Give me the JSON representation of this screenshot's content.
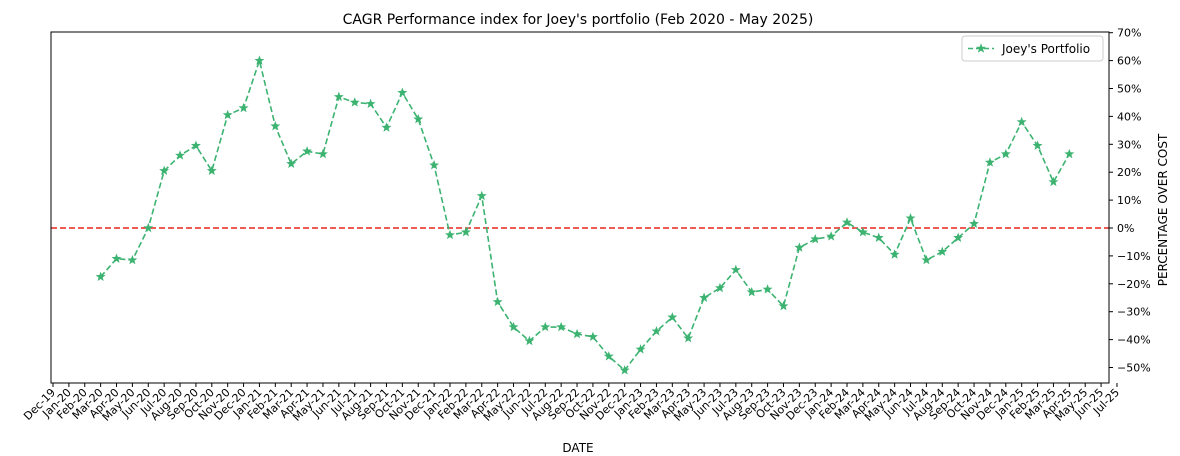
{
  "chart_data": {
    "type": "line",
    "title": "CAGR Performance index for Joey's portfolio (Feb 2020 - May 2025)",
    "xlabel": "DATE",
    "ylabel": "PERCENTAGE OVER COST",
    "x_tick_labels": [
      "Dec-19",
      "Jan-20",
      "Feb-20",
      "Mar-20",
      "Apr-20",
      "May-20",
      "Jun-20",
      "Jul-20",
      "Aug-20",
      "Sep-20",
      "Oct-20",
      "Nov-20",
      "Dec-20",
      "Jan-21",
      "Feb-21",
      "Mar-21",
      "Apr-21",
      "May-21",
      "Jun-21",
      "Jul-21",
      "Aug-21",
      "Sep-21",
      "Oct-21",
      "Nov-21",
      "Dec-21",
      "Jan-22",
      "Feb-22",
      "Mar-22",
      "Apr-22",
      "May-22",
      "Jun-22",
      "Jul-22",
      "Aug-22",
      "Sep-22",
      "Oct-22",
      "Nov-22",
      "Dec-22",
      "Jan-23",
      "Feb-23",
      "Mar-23",
      "Apr-23",
      "May-23",
      "Jun-23",
      "Jul-23",
      "Aug-23",
      "Sep-23",
      "Oct-23",
      "Nov-23",
      "Dec-23",
      "Jan-24",
      "Feb-24",
      "Mar-24",
      "Apr-24",
      "May-24",
      "Jun-24",
      "Jul-24",
      "Aug-24",
      "Sep-24",
      "Oct-24",
      "Nov-24",
      "Dec-24",
      "Jan-25",
      "Feb-25",
      "Mar-25",
      "Apr-25",
      "May-25",
      "Jun-25",
      "Jul-25"
    ],
    "y_ticks": [
      -50,
      -40,
      -30,
      -20,
      -10,
      0,
      10,
      20,
      30,
      40,
      50,
      60,
      70
    ],
    "y_tick_labels": [
      "−50%",
      "−40%",
      "−30%",
      "−20%",
      "−10%",
      "0%",
      "10%",
      "20%",
      "30%",
      "40%",
      "50%",
      "60%",
      "70%"
    ],
    "ylim": [
      -55,
      70
    ],
    "y_axis_position": "right",
    "grid": false,
    "legend_position": "top-right",
    "reference_line": {
      "y": 0,
      "color": "#e8261e",
      "style": "dashed"
    },
    "series": [
      {
        "name": "Joey's Portfolio",
        "color": "#3cb371",
        "line_style": "dashed",
        "marker": "star",
        "x": [
          "Mar-20",
          "Apr-20",
          "May-20",
          "Jun-20",
          "Jul-20",
          "Aug-20",
          "Sep-20",
          "Oct-20",
          "Nov-20",
          "Dec-20",
          "Jan-21",
          "Feb-21",
          "Mar-21",
          "Apr-21",
          "May-21",
          "Jun-21",
          "Jul-21",
          "Aug-21",
          "Sep-21",
          "Oct-21",
          "Nov-21",
          "Dec-21",
          "Jan-22",
          "Feb-22",
          "Mar-22",
          "Apr-22",
          "May-22",
          "Jun-22",
          "Jul-22",
          "Aug-22",
          "Sep-22",
          "Oct-22",
          "Nov-22",
          "Dec-22",
          "Jan-23",
          "Feb-23",
          "Mar-23",
          "Apr-23",
          "May-23",
          "Jun-23",
          "Jul-23",
          "Aug-23",
          "Sep-23",
          "Oct-23",
          "Nov-23",
          "Dec-23",
          "Jan-24",
          "Feb-24",
          "Mar-24",
          "Apr-24",
          "May-24",
          "Jun-24",
          "Jul-24",
          "Aug-24",
          "Sep-24",
          "Oct-24",
          "Nov-24",
          "Dec-24",
          "Jan-25",
          "Feb-25",
          "Mar-25",
          "Apr-25"
        ],
        "values": [
          -17.5,
          -11,
          -11.5,
          0,
          20.5,
          26,
          29.5,
          20.5,
          40.5,
          43,
          60,
          36.5,
          23,
          27.5,
          26.5,
          47,
          45,
          44.5,
          36,
          48.5,
          39,
          22.5,
          -2.5,
          -1.5,
          11.5,
          -26.5,
          -35.5,
          -40.5,
          -35.5,
          -35.5,
          -38,
          -39,
          -46,
          -51,
          -43.5,
          -37,
          -32,
          -39.5,
          -25,
          -21.5,
          -15,
          -23,
          -22,
          -28,
          -7,
          -4,
          -3,
          2,
          -1.5,
          -3.5,
          -9.5,
          3.5,
          -11.5,
          -8.5,
          -3.5,
          1.5,
          23.5,
          26.5,
          38,
          29.5,
          16.5,
          26.5
        ]
      }
    ]
  }
}
